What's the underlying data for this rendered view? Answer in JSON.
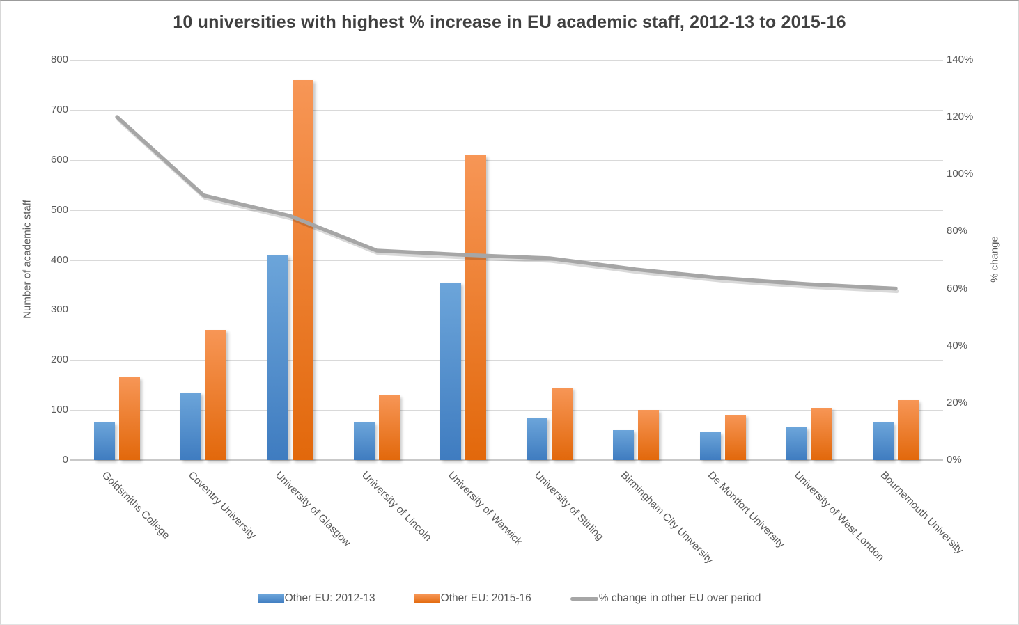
{
  "title": "10 universities with highest % increase in EU academic staff, 2012-13 to 2015-16",
  "chart_data": {
    "type": "combo-bar-line",
    "categories": [
      "Goldsmiths College",
      "Coventry University",
      "University of Glasgow",
      "University of Lincoln",
      "University of Warwick",
      "University of Stirling",
      "Birmingham City University",
      "De Montfort University",
      "University of West London",
      "Bournemouth University"
    ],
    "series": [
      {
        "name": "Other EU: 2012-13",
        "type": "bar",
        "axis": "left",
        "values": [
          75,
          135,
          410,
          75,
          355,
          85,
          60,
          55,
          65,
          75
        ]
      },
      {
        "name": "Other EU: 2015-16",
        "type": "bar",
        "axis": "left",
        "values": [
          165,
          260,
          760,
          130,
          610,
          145,
          100,
          90,
          105,
          120
        ]
      },
      {
        "name": "% change in other EU over period",
        "type": "line",
        "axis": "right",
        "values_pct": [
          120,
          92.6,
          85.4,
          73.3,
          71.8,
          70.6,
          66.7,
          63.6,
          61.5,
          60
        ]
      }
    ],
    "left_axis": {
      "title": "Number of academic staff",
      "min": 0,
      "max": 800,
      "tick_step": 100,
      "tick_labels": [
        "0",
        "100",
        "200",
        "300",
        "400",
        "500",
        "600",
        "700",
        "800"
      ]
    },
    "right_axis": {
      "title": "% change",
      "min": 0,
      "max": 140,
      "tick_step": 20,
      "tick_labels": [
        "0%",
        "20%",
        "40%",
        "60%",
        "80%",
        "100%",
        "120%",
        "140%"
      ]
    },
    "legend_position": "bottom",
    "grid": true
  },
  "colors": {
    "bar_2012_top": "#6ca5da",
    "bar_2012_bottom": "#3f7cc0",
    "bar_2015_top": "#f79656",
    "bar_2015_bottom": "#e2680b",
    "trend_line": "#a6a6a6",
    "gridline": "#d9d9d9",
    "axis_line": "#c9c9c9",
    "tick_text": "#595959",
    "title_text": "#404040"
  }
}
